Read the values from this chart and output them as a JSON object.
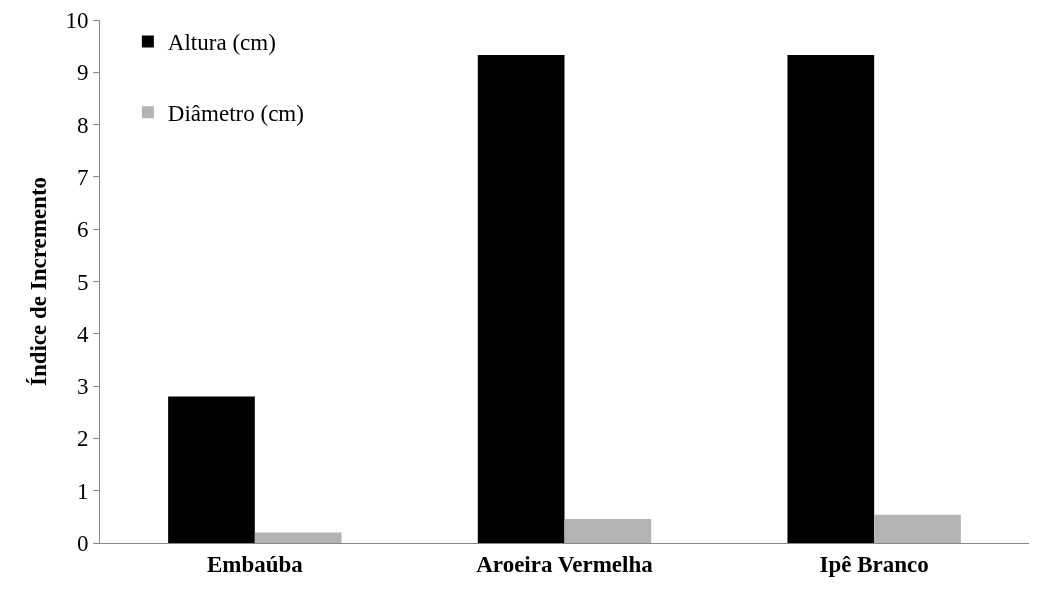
{
  "chart_data": {
    "type": "bar",
    "ylabel": "Índice de Incremento",
    "categories": [
      "Embaúba",
      "Aroeira Vermelha",
      "Ipê Branco"
    ],
    "series": [
      {
        "name": "Altura (cm)",
        "color": "#000000",
        "values": [
          2.8,
          9.33,
          9.33
        ]
      },
      {
        "name": "Diâmetro (cm)",
        "color": "#b3b3b3",
        "values": [
          0.2,
          0.46,
          0.54
        ]
      }
    ],
    "ylim": [
      0,
      10
    ],
    "yticks": [
      0,
      1,
      2,
      3,
      4,
      5,
      6,
      7,
      8,
      9,
      10
    ],
    "grid": false,
    "legend": "top left"
  }
}
